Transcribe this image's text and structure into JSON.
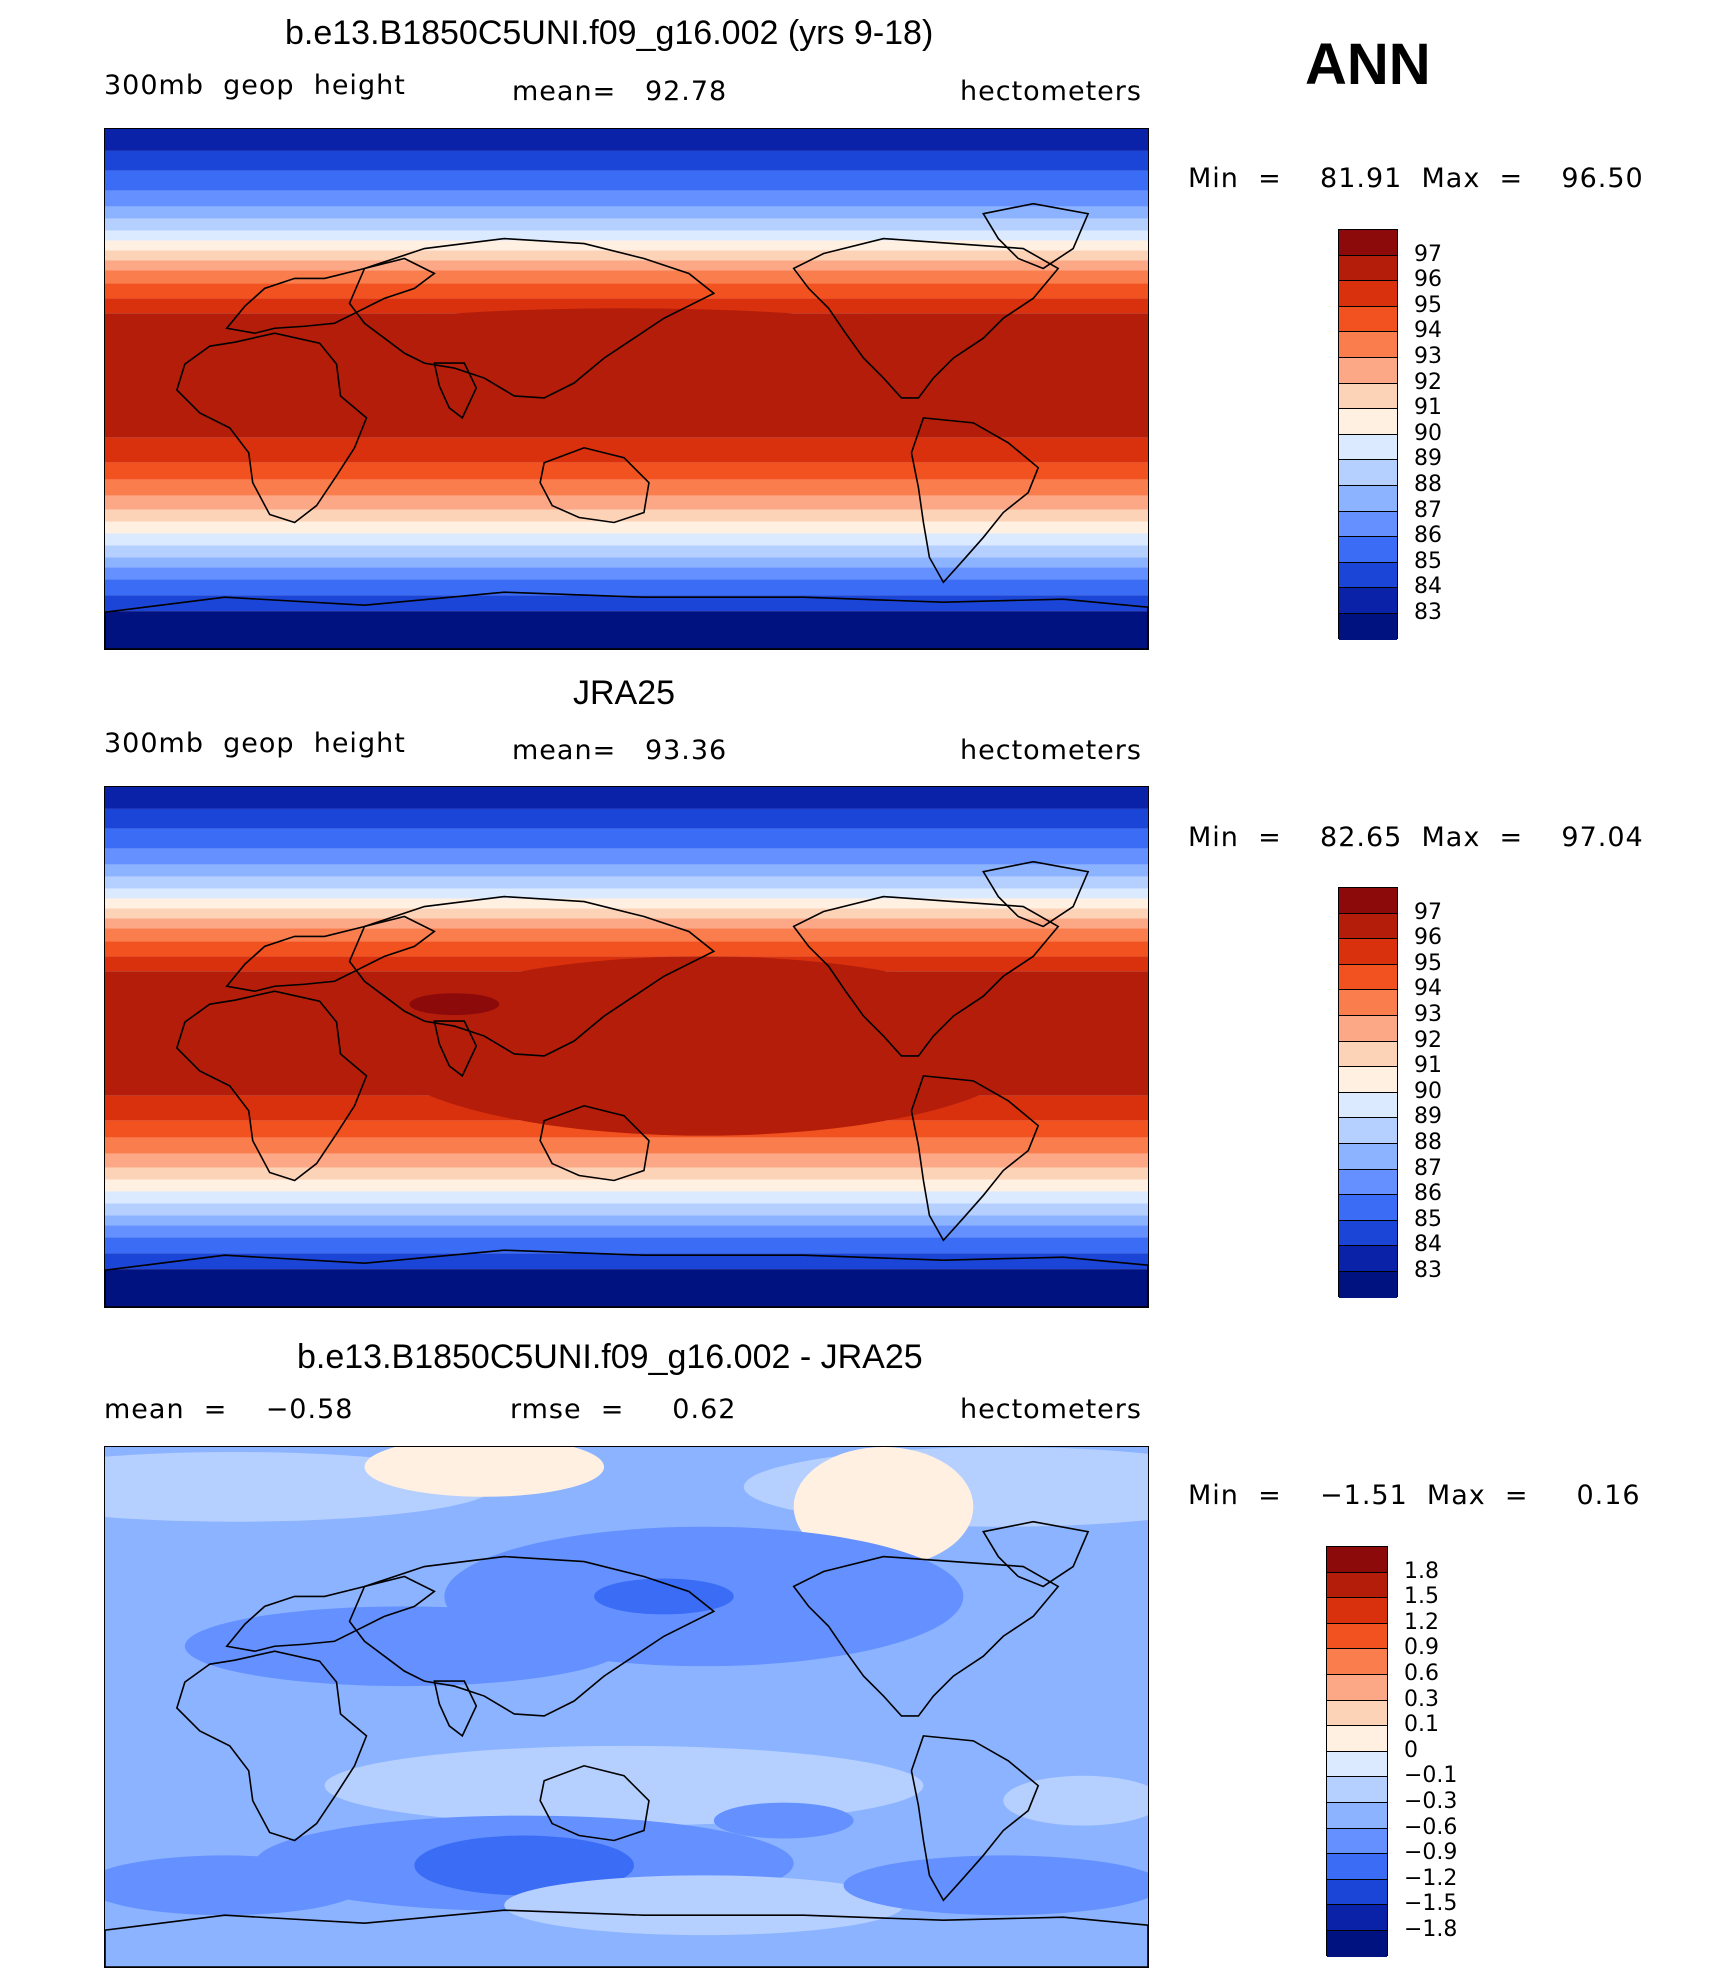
{
  "season": "ANN",
  "panels": [
    {
      "title": "b.e13.B1850C5UNI.f09_g16.002 (yrs 9-18)",
      "left_label": "300mb  geop  height",
      "center_label": "mean=   92.78",
      "right_label": "hectometers",
      "minmax": "Min  =    81.91  Max  =    96.50",
      "colorbar": {
        "labels": [
          "97",
          "96",
          "95",
          "94",
          "93",
          "92",
          "91",
          "90",
          "89",
          "88",
          "87",
          "86",
          "85",
          "84",
          "83"
        ],
        "colors": [
          "#8c0a0a",
          "#b31d0a",
          "#d9300e",
          "#f2521f",
          "#fa7e4d",
          "#fca886",
          "#fdd3b8",
          "#fff0e2",
          "#dceaff",
          "#b5d0ff",
          "#8cb3ff",
          "#6491ff",
          "#3b6cf5",
          "#1b45d6",
          "#0a22a8",
          "#001180"
        ]
      },
      "map_style": "model"
    },
    {
      "title": "JRA25",
      "left_label": "300mb  geop  height",
      "center_label": "mean=   93.36",
      "right_label": "hectometers",
      "minmax": "Min  =    82.65  Max  =    97.04",
      "colorbar": {
        "labels": [
          "97",
          "96",
          "95",
          "94",
          "93",
          "92",
          "91",
          "90",
          "89",
          "88",
          "87",
          "86",
          "85",
          "84",
          "83"
        ],
        "colors": [
          "#8c0a0a",
          "#b31d0a",
          "#d9300e",
          "#f2521f",
          "#fa7e4d",
          "#fca886",
          "#fdd3b8",
          "#fff0e2",
          "#dceaff",
          "#b5d0ff",
          "#8cb3ff",
          "#6491ff",
          "#3b6cf5",
          "#1b45d6",
          "#0a22a8",
          "#001180"
        ]
      },
      "map_style": "obs"
    },
    {
      "title": "b.e13.B1850C5UNI.f09_g16.002 - JRA25",
      "left_label": "mean  =    −0.58",
      "center_label": "rmse  =     0.62",
      "right_label": "hectometers",
      "minmax": "Min  =    −1.51  Max  =     0.16",
      "colorbar": {
        "labels": [
          "1.8",
          "1.5",
          "1.2",
          "0.9",
          "0.6",
          "0.3",
          "0.1",
          "0",
          "−0.1",
          "−0.3",
          "−0.6",
          "−0.9",
          "−1.2",
          "−1.5",
          "−1.8"
        ],
        "colors": [
          "#8c0a0a",
          "#b31d0a",
          "#d9300e",
          "#f2521f",
          "#fa7e4d",
          "#fca886",
          "#fdd3b8",
          "#fff0e2",
          "#dceaff",
          "#b5d0ff",
          "#8cb3ff",
          "#6491ff",
          "#3b6cf5",
          "#1b45d6",
          "#0a22a8",
          "#001180"
        ]
      },
      "map_style": "diff"
    }
  ]
}
